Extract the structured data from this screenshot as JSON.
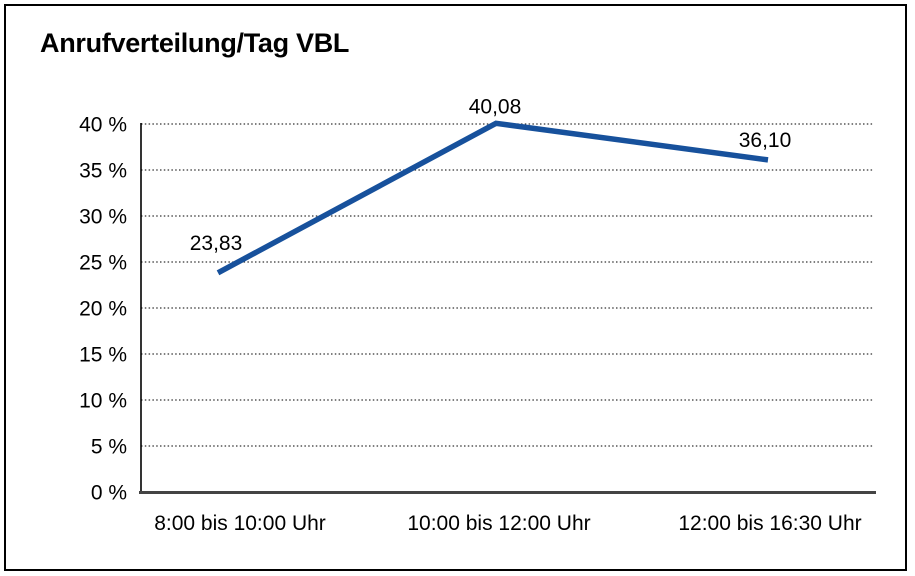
{
  "title": "Anrufverteilung/Tag VBL",
  "chart_data": {
    "type": "line",
    "title": "Anrufverteilung/Tag VBL",
    "categories": [
      "8:00 bis 10:00 Uhr",
      "10:00 bis 12:00 Uhr",
      "12:00 bis 16:30 Uhr"
    ],
    "values": [
      23.83,
      40.08,
      36.1
    ],
    "value_labels": [
      "23,83",
      "40,08",
      "36,10"
    ],
    "series_name": "Anrufverteilung",
    "xlabel": "",
    "ylabel": "",
    "ylim": [
      0,
      40
    ],
    "ytick_step": 5,
    "ytick_labels": [
      "0 %",
      "5 %",
      "10 %",
      "15 %",
      "20 %",
      "25 %",
      "30 %",
      "35 %",
      "40 %"
    ],
    "grid": "horizontal-dotted",
    "legend": "none"
  },
  "colors": {
    "line": "#17519C",
    "grid": "#333333",
    "y_axis": "#000000",
    "x_axis": "#444444",
    "text": "#000000",
    "border": "#000000",
    "background": "#ffffff"
  }
}
